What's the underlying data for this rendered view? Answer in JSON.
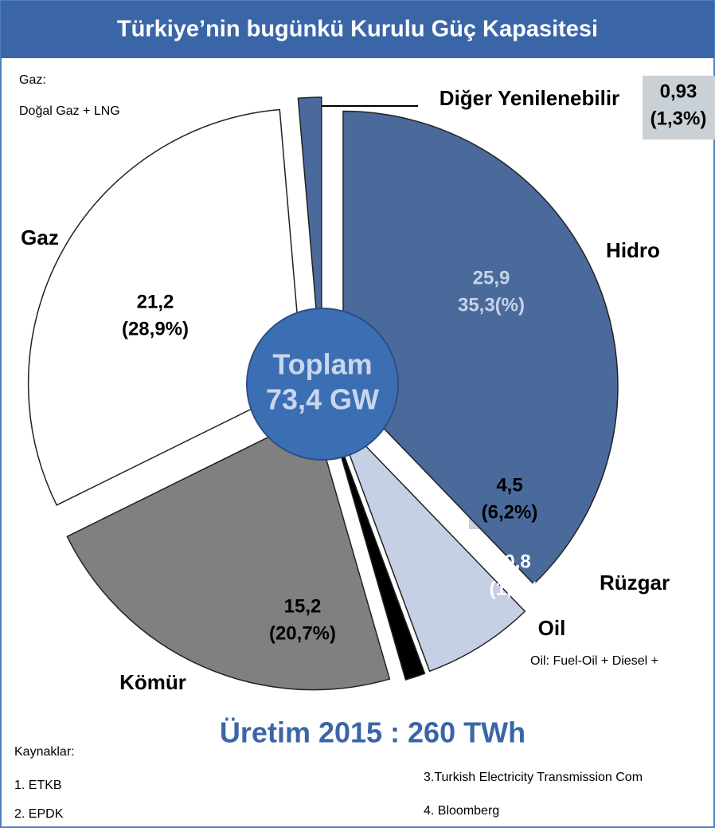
{
  "chart_data": {
    "type": "pie",
    "title": "Türkiye’nin bugünkü Kurulu Güç Kapasitesi",
    "categories": [
      "Hidro",
      "Rüzgar",
      "Oil",
      "Kömür",
      "Gaz",
      "Diğer Yenilenebilir"
    ],
    "values": [
      25.9,
      4.5,
      0.8,
      15.2,
      21.2,
      0.93
    ],
    "value_labels": [
      "25,9",
      "4,5",
      "0,8",
      "15,2",
      "21,2",
      "0,93"
    ],
    "percent_labels": [
      "35,3(%)",
      "(6,2%)",
      "(1,2%)",
      "(20,7%)",
      "(28,9%)",
      "(1,3%)"
    ],
    "colors": [
      "#4a6a9c",
      "#c6d0e4",
      "#000000",
      "#808080",
      "#ffffff",
      "#4a6a9c"
    ],
    "center_label": [
      "Toplam",
      "73,4 GW"
    ],
    "subtitle": "Üretim 2015 : 260 TWh",
    "notes": {
      "gas_title": "Gaz:",
      "gas": "Doğal Gaz + LNG",
      "oil": "Oil: Fuel-Oil + Diesel +"
    },
    "sources": {
      "title": "Kaynaklar:",
      "items": [
        "1. ETKB",
        "2. EPDK",
        "3.Turkish Electricity Transmission Com",
        "4. Bloomberg"
      ]
    }
  }
}
